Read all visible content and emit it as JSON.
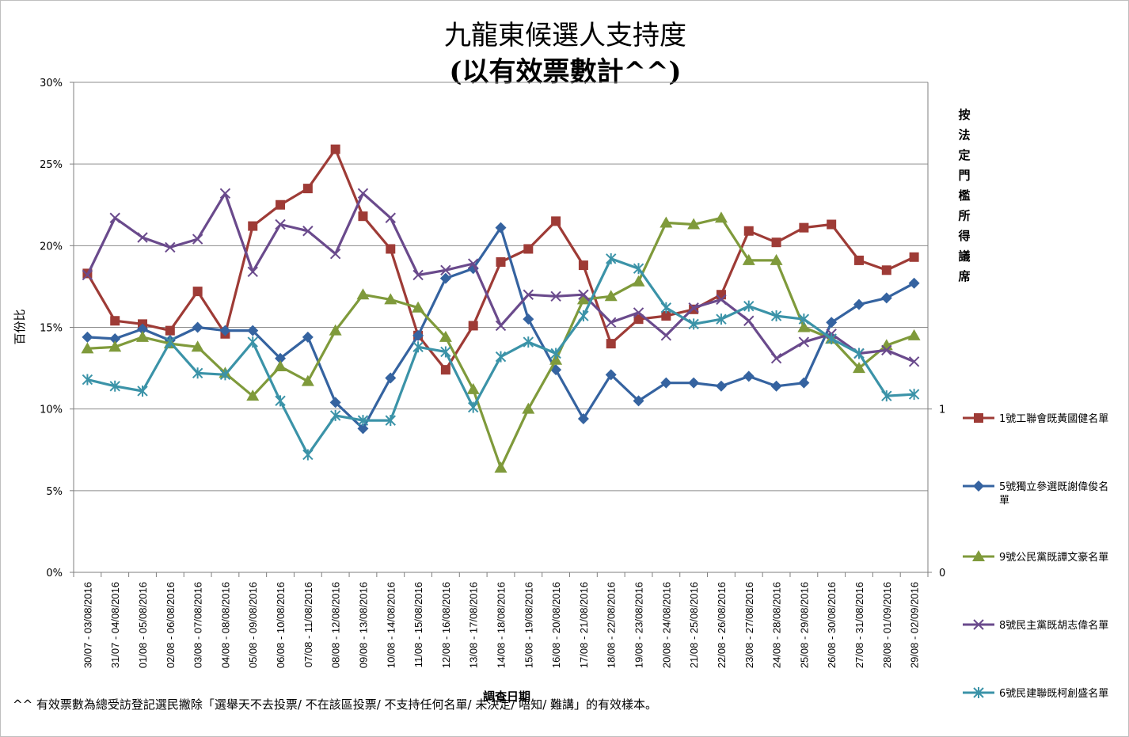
{
  "chart_data": {
    "type": "line",
    "title": [
      "九龍東候選人支持度",
      "(以有效票數計^^)"
    ],
    "xlabel": "調查日期",
    "ylabel": "百份比",
    "ylabel_right": "按法定門檻所得議席",
    "ylim": [
      0,
      30
    ],
    "yticks": [
      "0%",
      "5%",
      "10%",
      "15%",
      "20%",
      "25%",
      "30%"
    ],
    "ylim_right": [
      0,
      3
    ],
    "yticks_right": [
      "0",
      "1"
    ],
    "grid": true,
    "legend_position": "right",
    "categories": [
      "30/07 - 03/08/2016",
      "31/07 - 04/08/2016",
      "01/08 - 05/08/2016",
      "02/08 - 06/08/2016",
      "03/08 - 07/08/2016",
      "04/08 - 08/08/2016",
      "05/08 - 09/08/2016",
      "06/08 - 10/08/2016",
      "07/08 - 11/08/2016",
      "08/08 - 12/08/2016",
      "09/08 - 13/08/2016",
      "10/08 - 14/08/2016",
      "11/08 - 15/08/2016",
      "12/08 - 16/08/2016",
      "13/08 - 17/08/2016",
      "14/08 - 18/08/2016",
      "15/08 - 19/08/2016",
      "16/08 - 20/08/2016",
      "17/08 - 21/08/2016",
      "18/08 - 22/08/2016",
      "19/08 - 23/08/2016",
      "20/08 - 24/08/2016",
      "21/08 - 25/08/2016",
      "22/08 - 26/08/2016",
      "23/08 - 27/08/2016",
      "24/08 - 28/08/2016",
      "25/08 - 29/08/2016",
      "26/08 - 30/08/2016",
      "27/08 - 31/08/2016",
      "28/08 - 01/09/2016",
      "29/08 - 02/09/2016"
    ],
    "series": [
      {
        "name": "1號工聯會既黃國健名單",
        "color": "#9e3b36",
        "marker": "square",
        "values": [
          18.3,
          15.4,
          15.2,
          14.8,
          17.2,
          14.6,
          21.2,
          22.5,
          23.5,
          25.9,
          21.8,
          19.8,
          14.5,
          12.4,
          15.1,
          19.0,
          19.8,
          21.5,
          18.8,
          14.0,
          15.5,
          15.7,
          16.1,
          17.0,
          20.9,
          20.2,
          21.1,
          21.3,
          19.1,
          18.5,
          19.3
        ]
      },
      {
        "name": "5號獨立參選既謝偉俊名單",
        "color": "#3563a0",
        "marker": "diamond",
        "values": [
          14.4,
          14.3,
          14.9,
          14.2,
          15.0,
          14.8,
          14.8,
          13.1,
          14.4,
          10.4,
          8.8,
          11.9,
          14.5,
          18.0,
          18.6,
          21.1,
          15.5,
          12.4,
          9.4,
          12.1,
          10.5,
          11.6,
          11.6,
          11.4,
          12.0,
          11.4,
          11.6,
          15.3,
          16.4,
          16.8,
          17.7
        ]
      },
      {
        "name": "9號公民黨既譚文豪名單",
        "color": "#7f9a3b",
        "marker": "triangle",
        "values": [
          13.7,
          13.8,
          14.4,
          14.0,
          13.8,
          12.2,
          10.8,
          12.6,
          11.7,
          14.8,
          17.0,
          16.7,
          16.2,
          14.4,
          11.2,
          6.4,
          10.0,
          13.0,
          16.7,
          16.9,
          17.8,
          21.4,
          21.3,
          21.7,
          19.1,
          19.1,
          15.0,
          14.3,
          12.5,
          13.9,
          14.5
        ]
      },
      {
        "name": "8號民主黨既胡志偉名單",
        "color": "#6a4a8c",
        "marker": "x",
        "values": [
          18.2,
          21.7,
          20.5,
          19.9,
          20.4,
          23.2,
          18.4,
          21.3,
          20.9,
          19.5,
          23.2,
          21.7,
          18.2,
          18.5,
          18.9,
          15.1,
          17.0,
          16.9,
          17.0,
          15.3,
          15.9,
          14.5,
          16.2,
          16.7,
          15.4,
          13.1,
          14.1,
          14.6,
          13.4,
          13.6,
          12.9
        ]
      },
      {
        "name": "6號民建聯既柯創盛名單",
        "color": "#3b93a8",
        "marker": "asterisk",
        "values": [
          11.8,
          11.4,
          11.1,
          14.1,
          12.2,
          12.1,
          14.1,
          10.5,
          7.2,
          9.6,
          9.3,
          9.3,
          13.8,
          13.5,
          10.1,
          13.2,
          14.1,
          13.4,
          15.7,
          19.2,
          18.6,
          16.2,
          15.2,
          15.5,
          16.3,
          15.7,
          15.5,
          14.3,
          13.4,
          10.8,
          10.9
        ]
      }
    ]
  },
  "footnote": "^^ 有效票數為總受訪登記選民撇除「選舉天不去投票/ 不在該區投票/ 不支持任何名單/ 未決定/ 唔知/ 難講」的有效樣本。"
}
